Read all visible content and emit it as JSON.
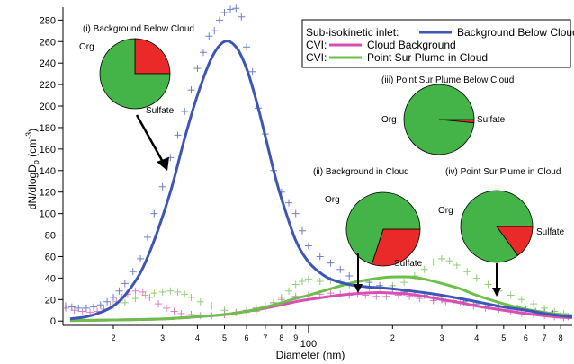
{
  "chart_data": {
    "type": "line",
    "xlabel": "Diameter (nm)",
    "ylabel": "dN/dlogD",
    "ylabel_sub": "p",
    "ylabel_unit_open": " (cm",
    "ylabel_unit_exp": "-3",
    "ylabel_unit_close": ")",
    "x_scale": "log",
    "xlim": [
      13.2,
      880
    ],
    "ylim": [
      -4,
      292
    ],
    "y_ticks": [
      0,
      20,
      40,
      60,
      80,
      100,
      120,
      140,
      160,
      180,
      200,
      220,
      240,
      260,
      280
    ],
    "x_major_tick_labels": [
      {
        "value": 100,
        "label": "100"
      }
    ],
    "x_minor_tick_labels": [
      {
        "value": 20,
        "label": "2"
      },
      {
        "value": 30,
        "label": "3"
      },
      {
        "value": 40,
        "label": "4"
      },
      {
        "value": 50,
        "label": "5"
      },
      {
        "value": 60,
        "label": "6"
      },
      {
        "value": 70,
        "label": "7"
      },
      {
        "value": 80,
        "label": "8"
      },
      {
        "value": 90,
        "label": "9"
      },
      {
        "value": 200,
        "label": "2"
      },
      {
        "value": 300,
        "label": "3"
      },
      {
        "value": 400,
        "label": "4"
      },
      {
        "value": 500,
        "label": "5"
      },
      {
        "value": 600,
        "label": "6"
      },
      {
        "value": 700,
        "label": "7"
      },
      {
        "value": 800,
        "label": "8"
      }
    ],
    "legend": {
      "placement": "top-right",
      "entries": [
        {
          "prefix": "Sub-isokinetic inlet:",
          "name": "Background Below Cloud",
          "color": "#3f55b5"
        },
        {
          "prefix": "CVI:",
          "name": "Cloud Background",
          "color": "#d84fb4"
        },
        {
          "prefix": "CVI:",
          "name": "Point Sur Plume in Cloud",
          "color": "#6cc04a"
        }
      ]
    },
    "series": [
      {
        "name": "Background Below Cloud",
        "color": "#3f55b5",
        "fit": {
          "x": [
            14,
            16,
            18,
            20,
            22,
            25,
            28,
            32,
            36,
            40,
            45,
            50,
            55,
            60,
            65,
            70,
            75,
            80,
            90,
            100,
            110,
            120,
            140,
            160,
            200,
            250,
            300,
            400,
            500,
            600,
            700,
            800,
            880
          ],
          "y": [
            2,
            4,
            8,
            14,
            24,
            45,
            75,
            120,
            170,
            210,
            245,
            260,
            255,
            235,
            205,
            172,
            140,
            114,
            75,
            55,
            45,
            39,
            34,
            32,
            30,
            27,
            24,
            18,
            13,
            10,
            7,
            5,
            4
          ]
        },
        "points": {
          "x": [
            13.5,
            14.2,
            15,
            16,
            17,
            18,
            19,
            20,
            21,
            22,
            23.5,
            25,
            26.5,
            28,
            30,
            32,
            34,
            36,
            38,
            40,
            42,
            44,
            46,
            48,
            50,
            52.5,
            55,
            57.5,
            60,
            63,
            66,
            70,
            75,
            80,
            85,
            90,
            95,
            100,
            110,
            120,
            130,
            140,
            150,
            165,
            180,
            200,
            220,
            240,
            260,
            280,
            300,
            330,
            360,
            400,
            440,
            480,
            520,
            560,
            600,
            650,
            700,
            750,
            800,
            850
          ],
          "y": [
            14,
            13,
            12,
            12,
            13,
            15,
            18,
            22,
            28,
            35,
            46,
            58,
            78,
            100,
            125,
            152,
            173,
            195,
            215,
            235,
            250,
            265,
            270,
            280,
            287,
            290,
            291,
            283,
            255,
            232,
            198,
            174,
            140,
            120,
            110,
            100,
            84,
            70,
            60,
            54,
            48,
            42,
            38,
            36,
            33,
            30,
            27,
            25,
            24,
            22,
            20,
            19,
            18,
            16,
            14,
            13,
            12,
            12,
            11,
            9,
            8,
            7,
            5,
            4
          ]
        }
      },
      {
        "name": "Cloud Background",
        "color": "#d84fb4",
        "fit": {
          "x": [
            14,
            20,
            30,
            40,
            50,
            60,
            70,
            80,
            90,
            100,
            120,
            140,
            160,
            180,
            200,
            230,
            260,
            300,
            350,
            400,
            500,
            600,
            700,
            800,
            880
          ],
          "y": [
            0.5,
            1,
            2,
            4,
            6,
            9,
            12,
            15,
            18,
            20,
            23,
            25,
            26,
            26.5,
            26,
            25,
            23,
            20,
            17,
            14,
            10,
            7,
            5,
            3.5,
            3
          ]
        },
        "points": {
          "x": [
            13.5,
            14.5,
            15.5,
            16.5,
            17.5,
            18.5,
            19.5,
            20.5,
            21.5,
            22.5,
            24,
            25.5,
            27,
            29,
            31,
            33,
            35,
            38,
            41,
            45,
            50,
            55,
            60,
            65,
            70,
            75,
            80,
            90,
            100,
            110,
            120,
            130,
            140,
            150,
            160,
            175,
            190,
            210,
            230,
            250,
            280,
            310,
            350,
            390,
            430,
            480,
            530,
            580,
            640,
            700,
            760,
            820
          ],
          "y": [
            12,
            10,
            9,
            8,
            9,
            11,
            14,
            18,
            22,
            25,
            28,
            27,
            22,
            16,
            12,
            9,
            7,
            6,
            5,
            5,
            6,
            8,
            10,
            12,
            14,
            17,
            20,
            23,
            24,
            25,
            26,
            25,
            24,
            25,
            24,
            23,
            23,
            24,
            23,
            21,
            19,
            18,
            17,
            14,
            12,
            11,
            9,
            7,
            6,
            5,
            4,
            3
          ]
        }
      },
      {
        "name": "Point Sur Plume in Cloud",
        "color": "#6cc04a",
        "fit": {
          "x": [
            14,
            20,
            30,
            40,
            50,
            60,
            70,
            80,
            90,
            100,
            120,
            140,
            160,
            180,
            200,
            230,
            260,
            300,
            350,
            400,
            500,
            600,
            700,
            800,
            880
          ],
          "y": [
            0.5,
            1,
            2,
            4,
            6,
            9,
            13,
            17,
            21,
            24,
            30,
            35,
            38,
            40,
            41,
            41,
            39,
            35,
            30,
            24,
            16,
            11,
            8,
            6,
            5
          ]
        },
        "points": {
          "x": [
            20,
            22,
            24,
            26,
            28,
            30,
            32,
            34,
            36,
            38,
            41,
            45,
            50,
            55,
            60,
            65,
            70,
            75,
            80,
            85,
            90,
            95,
            100,
            110,
            120,
            130,
            140,
            150,
            165,
            180,
            200,
            220,
            240,
            260,
            280,
            300,
            320,
            340,
            370,
            400,
            440,
            480,
            530,
            580,
            640,
            700,
            760,
            820
          ],
          "y": [
            14,
            17,
            21,
            24,
            26,
            27,
            28,
            27,
            25,
            22,
            18,
            14,
            10,
            8,
            8,
            9,
            12,
            17,
            22,
            28,
            34,
            37,
            39,
            37,
            38,
            36,
            33,
            32,
            31,
            30,
            33,
            36,
            42,
            48,
            55,
            58,
            56,
            52,
            46,
            40,
            34,
            28,
            24,
            20,
            16,
            12,
            9,
            7
          ]
        }
      }
    ],
    "pie_insets": [
      {
        "title": "(i) Background Below Cloud",
        "slices": [
          {
            "label": "Org",
            "fraction": 0.75,
            "color": "#44b348"
          },
          {
            "label": "Sulfate",
            "fraction": 0.25,
            "color": "#e92a28"
          }
        ],
        "arrow_to": {
          "x": 30,
          "y": 150
        }
      },
      {
        "title": "(iii) Point Sur Plume Below Cloud",
        "slices": [
          {
            "label": "Org",
            "fraction": 0.985,
            "color": "#44b348"
          },
          {
            "label": "Sulfate",
            "fraction": 0.015,
            "color": "#e92a28"
          }
        ],
        "arrow_to": null
      },
      {
        "title": "(ii) Background in Cloud",
        "slices": [
          {
            "label": "Org",
            "fraction": 0.7,
            "color": "#44b348"
          },
          {
            "label": "Sulfate",
            "fraction": 0.3,
            "color": "#e92a28"
          }
        ],
        "arrow_to": {
          "x": 148,
          "y": 25
        }
      },
      {
        "title": "(iv) Point Sur Plume in Cloud",
        "slices": [
          {
            "label": "Org",
            "fraction": 0.85,
            "color": "#44b348"
          },
          {
            "label": "Sulfate",
            "fraction": 0.15,
            "color": "#e92a28"
          }
        ],
        "arrow_to": {
          "x": 480,
          "y": 17
        }
      }
    ]
  }
}
